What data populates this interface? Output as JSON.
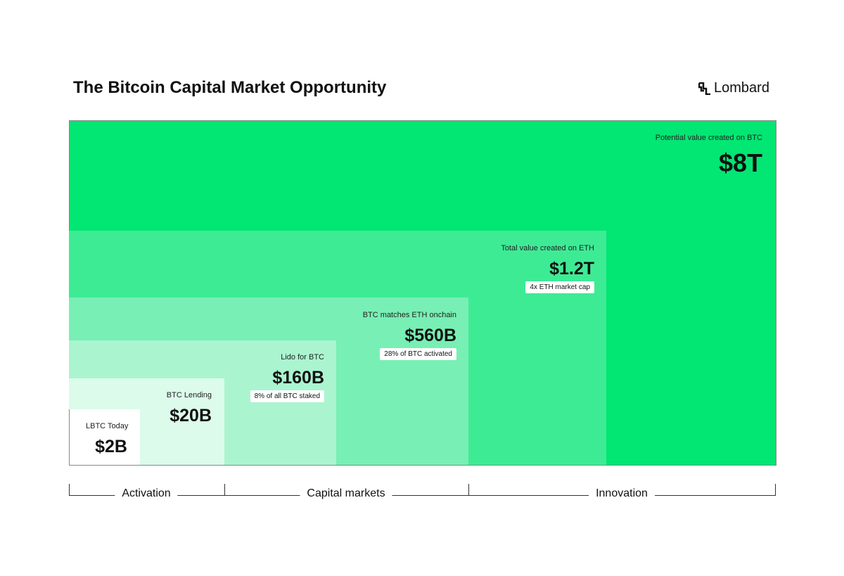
{
  "header": {
    "title": "The Bitcoin Capital Market Opportunity",
    "brand": "Lombard"
  },
  "tiers": [
    {
      "label": "Potential value created on BTC",
      "value": "$8T"
    },
    {
      "label": "Total value created on ETH",
      "value": "$1.2T",
      "note": "4x ETH market cap"
    },
    {
      "label": "BTC matches ETH onchain",
      "value": "$560B",
      "note": "28% of BTC activated"
    },
    {
      "label": "Lido for BTC",
      "value": "$160B",
      "note": "8% of all BTC staked"
    },
    {
      "label": "BTC Lending",
      "value": "$20B"
    },
    {
      "label": "LBTC Today",
      "value": "$2B"
    }
  ],
  "phases": [
    "Activation",
    "Capital markets",
    "Innovation"
  ]
}
